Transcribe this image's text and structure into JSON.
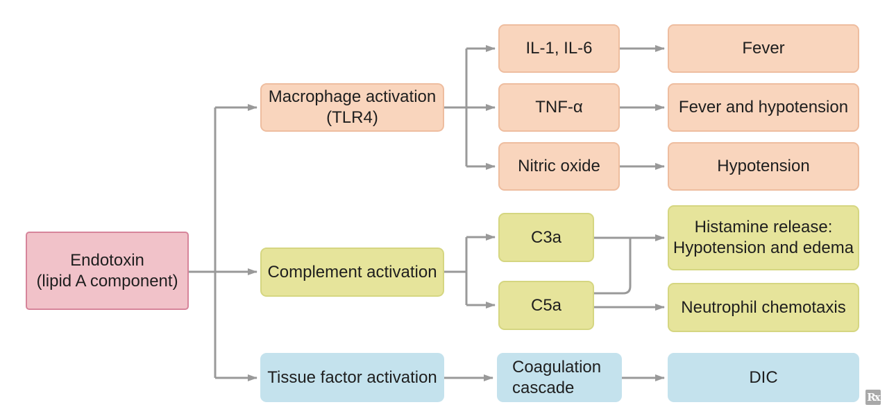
{
  "diagram": {
    "root": "Endotoxin\n(lipid A component)",
    "pathways": {
      "macrophage": "Macrophage activation\n(TLR4)",
      "complement": "Complement activation",
      "tissue_factor": "Tissue factor activation"
    },
    "mediators": {
      "il1_il6": "IL-1, IL-6",
      "tnf": "TNF-α",
      "nitric_oxide": "Nitric oxide",
      "c3a": "C3a",
      "c5a": "C5a",
      "coagulation": "Coagulation\ncascade"
    },
    "effects": {
      "fever": "Fever",
      "fever_hypotension": "Fever and hypotension",
      "hypotension": "Hypotension",
      "histamine": "Histamine release:\nHypotension and edema",
      "neutrophil": "Neutrophil chemotaxis",
      "dic": "DIC"
    },
    "logo_text": "Rx"
  },
  "colors": {
    "root_fill": "#f1c2c9",
    "orange_fill": "#f9d5bd",
    "yellow_fill": "#e6e49b",
    "blue_fill": "#c4e2ed",
    "connector": "#999999"
  }
}
